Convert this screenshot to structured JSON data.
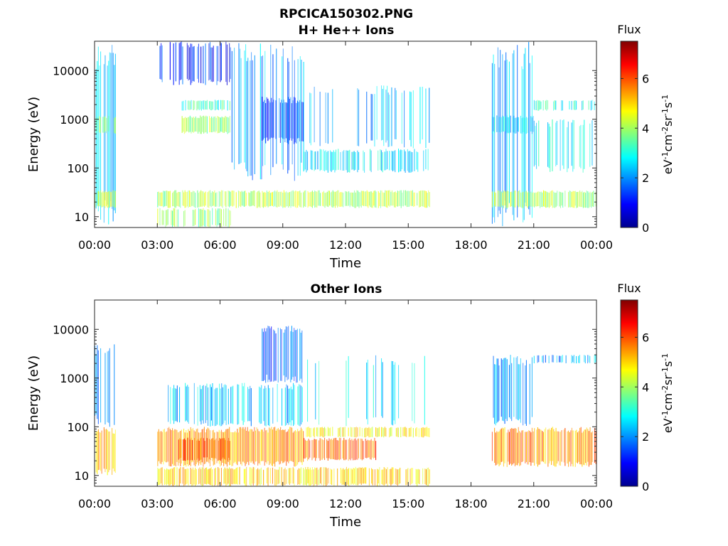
{
  "figure_title": "RPCICA150302.PNG",
  "chart_data": [
    {
      "type": "heatmap",
      "title": "H+ He++ Ions",
      "xlabel": "Time",
      "ylabel": "Energy (eV)",
      "x_ticks": [
        "00:00",
        "03:00",
        "06:00",
        "09:00",
        "12:00",
        "15:00",
        "18:00",
        "21:00",
        "00:00"
      ],
      "y_ticks": [
        "10",
        "100",
        "1000",
        "10000"
      ],
      "y_scale": "log",
      "ylim": [
        6,
        40000
      ],
      "colorbar": {
        "label": "Flux",
        "unit": "eV-1cm-2sr-1s-1",
        "ticks": [
          "0",
          "2",
          "4",
          "6"
        ],
        "range": [
          0,
          7.5
        ]
      },
      "colormap": [
        "#00008f",
        "#0000ff",
        "#00ffff",
        "#ffff00",
        "#ff0000",
        "#800000"
      ],
      "data_gaps": [
        [
          "01:00",
          "03:00"
        ],
        [
          "16:00",
          "19:00"
        ]
      ],
      "bands": [
        {
          "start": "00:00",
          "end": "01:00",
          "emin": 6,
          "emax": 40000,
          "flux": 2.3,
          "density": 0.55
        },
        {
          "start": "00:00",
          "end": "01:00",
          "emin": 15,
          "emax": 35,
          "flux": 4.2,
          "density": 0.9
        },
        {
          "start": "00:00",
          "end": "01:00",
          "emin": 500,
          "emax": 1200,
          "flux": 3.8,
          "density": 0.7
        },
        {
          "start": "03:00",
          "end": "16:00",
          "emin": 15,
          "emax": 35,
          "flux": 4.1,
          "density": 0.9
        },
        {
          "start": "03:00",
          "end": "06:30",
          "emin": 6,
          "emax": 15,
          "flux": 3.8,
          "density": 0.7
        },
        {
          "start": "03:00",
          "end": "06:30",
          "emin": 5000,
          "emax": 40000,
          "flux": 1.2,
          "density": 0.45
        },
        {
          "start": "04:10",
          "end": "06:30",
          "emin": 500,
          "emax": 1200,
          "flux": 3.9,
          "density": 0.9
        },
        {
          "start": "04:10",
          "end": "06:30",
          "emin": 1500,
          "emax": 2500,
          "flux": 3.2,
          "density": 0.8
        },
        {
          "start": "06:30",
          "end": "10:00",
          "emin": 50,
          "emax": 40000,
          "flux": 2.1,
          "density": 0.55
        },
        {
          "start": "08:00",
          "end": "10:00",
          "emin": 300,
          "emax": 3000,
          "flux": 1.4,
          "density": 0.8
        },
        {
          "start": "10:00",
          "end": "16:00",
          "emin": 80,
          "emax": 250,
          "flux": 2.6,
          "density": 0.6
        },
        {
          "start": "10:00",
          "end": "16:00",
          "emin": 250,
          "emax": 5000,
          "flux": 2.3,
          "density": 0.3
        },
        {
          "start": "19:00",
          "end": "21:00",
          "emin": 6,
          "emax": 40000,
          "flux": 2.2,
          "density": 0.55
        },
        {
          "start": "19:00",
          "end": "21:00",
          "emin": 500,
          "emax": 1200,
          "flux": 2.5,
          "density": 0.8
        },
        {
          "start": "19:00",
          "end": "23:59",
          "emin": 15,
          "emax": 35,
          "flux": 4.0,
          "density": 0.9
        },
        {
          "start": "21:00",
          "end": "23:59",
          "emin": 1500,
          "emax": 2500,
          "flux": 3.0,
          "density": 0.6
        },
        {
          "start": "21:00",
          "end": "23:59",
          "emin": 80,
          "emax": 1000,
          "flux": 2.7,
          "density": 0.4
        }
      ]
    },
    {
      "type": "heatmap",
      "title": "Other Ions",
      "xlabel": "Time",
      "ylabel": "Energy (eV)",
      "x_ticks": [
        "00:00",
        "03:00",
        "06:00",
        "09:00",
        "12:00",
        "15:00",
        "18:00",
        "21:00",
        "00:00"
      ],
      "y_ticks": [
        "10",
        "100",
        "1000",
        "10000"
      ],
      "y_scale": "log",
      "ylim": [
        6,
        40000
      ],
      "colorbar": {
        "label": "Flux",
        "unit": "eV-1cm-2sr-1s-1",
        "ticks": [
          "0",
          "2",
          "4",
          "6"
        ],
        "range": [
          0,
          7.5
        ]
      },
      "colormap": [
        "#00008f",
        "#0000ff",
        "#00ffff",
        "#ffff00",
        "#ff0000",
        "#800000"
      ],
      "data_gaps": [
        [
          "01:00",
          "03:00"
        ],
        [
          "16:00",
          "19:00"
        ]
      ],
      "bands": [
        {
          "start": "00:00",
          "end": "01:00",
          "emin": 10,
          "emax": 100,
          "flux": 5.2,
          "density": 0.9
        },
        {
          "start": "00:00",
          "end": "01:00",
          "emin": 100,
          "emax": 5000,
          "flux": 2.2,
          "density": 0.45
        },
        {
          "start": "03:00",
          "end": "10:00",
          "emin": 15,
          "emax": 100,
          "flux": 5.4,
          "density": 0.95
        },
        {
          "start": "03:00",
          "end": "16:00",
          "emin": 6,
          "emax": 15,
          "flux": 5.0,
          "density": 0.7
        },
        {
          "start": "04:00",
          "end": "06:30",
          "emin": 20,
          "emax": 60,
          "flux": 6.0,
          "density": 0.9
        },
        {
          "start": "03:30",
          "end": "10:00",
          "emin": 100,
          "emax": 800,
          "flux": 2.4,
          "density": 0.6
        },
        {
          "start": "08:00",
          "end": "10:00",
          "emin": 800,
          "emax": 12000,
          "flux": 1.6,
          "density": 0.7
        },
        {
          "start": "10:00",
          "end": "13:30",
          "emin": 20,
          "emax": 60,
          "flux": 5.8,
          "density": 0.85
        },
        {
          "start": "10:00",
          "end": "16:00",
          "emin": 60,
          "emax": 100,
          "flux": 4.8,
          "density": 0.7
        },
        {
          "start": "10:00",
          "end": "16:00",
          "emin": 100,
          "emax": 3000,
          "flux": 2.6,
          "density": 0.25
        },
        {
          "start": "19:00",
          "end": "23:59",
          "emin": 15,
          "emax": 100,
          "flux": 5.5,
          "density": 0.9
        },
        {
          "start": "19:00",
          "end": "21:00",
          "emin": 100,
          "emax": 3000,
          "flux": 2.0,
          "density": 0.55
        },
        {
          "start": "21:00",
          "end": "23:59",
          "emin": 2000,
          "emax": 3000,
          "flux": 2.2,
          "density": 0.6
        }
      ]
    }
  ]
}
